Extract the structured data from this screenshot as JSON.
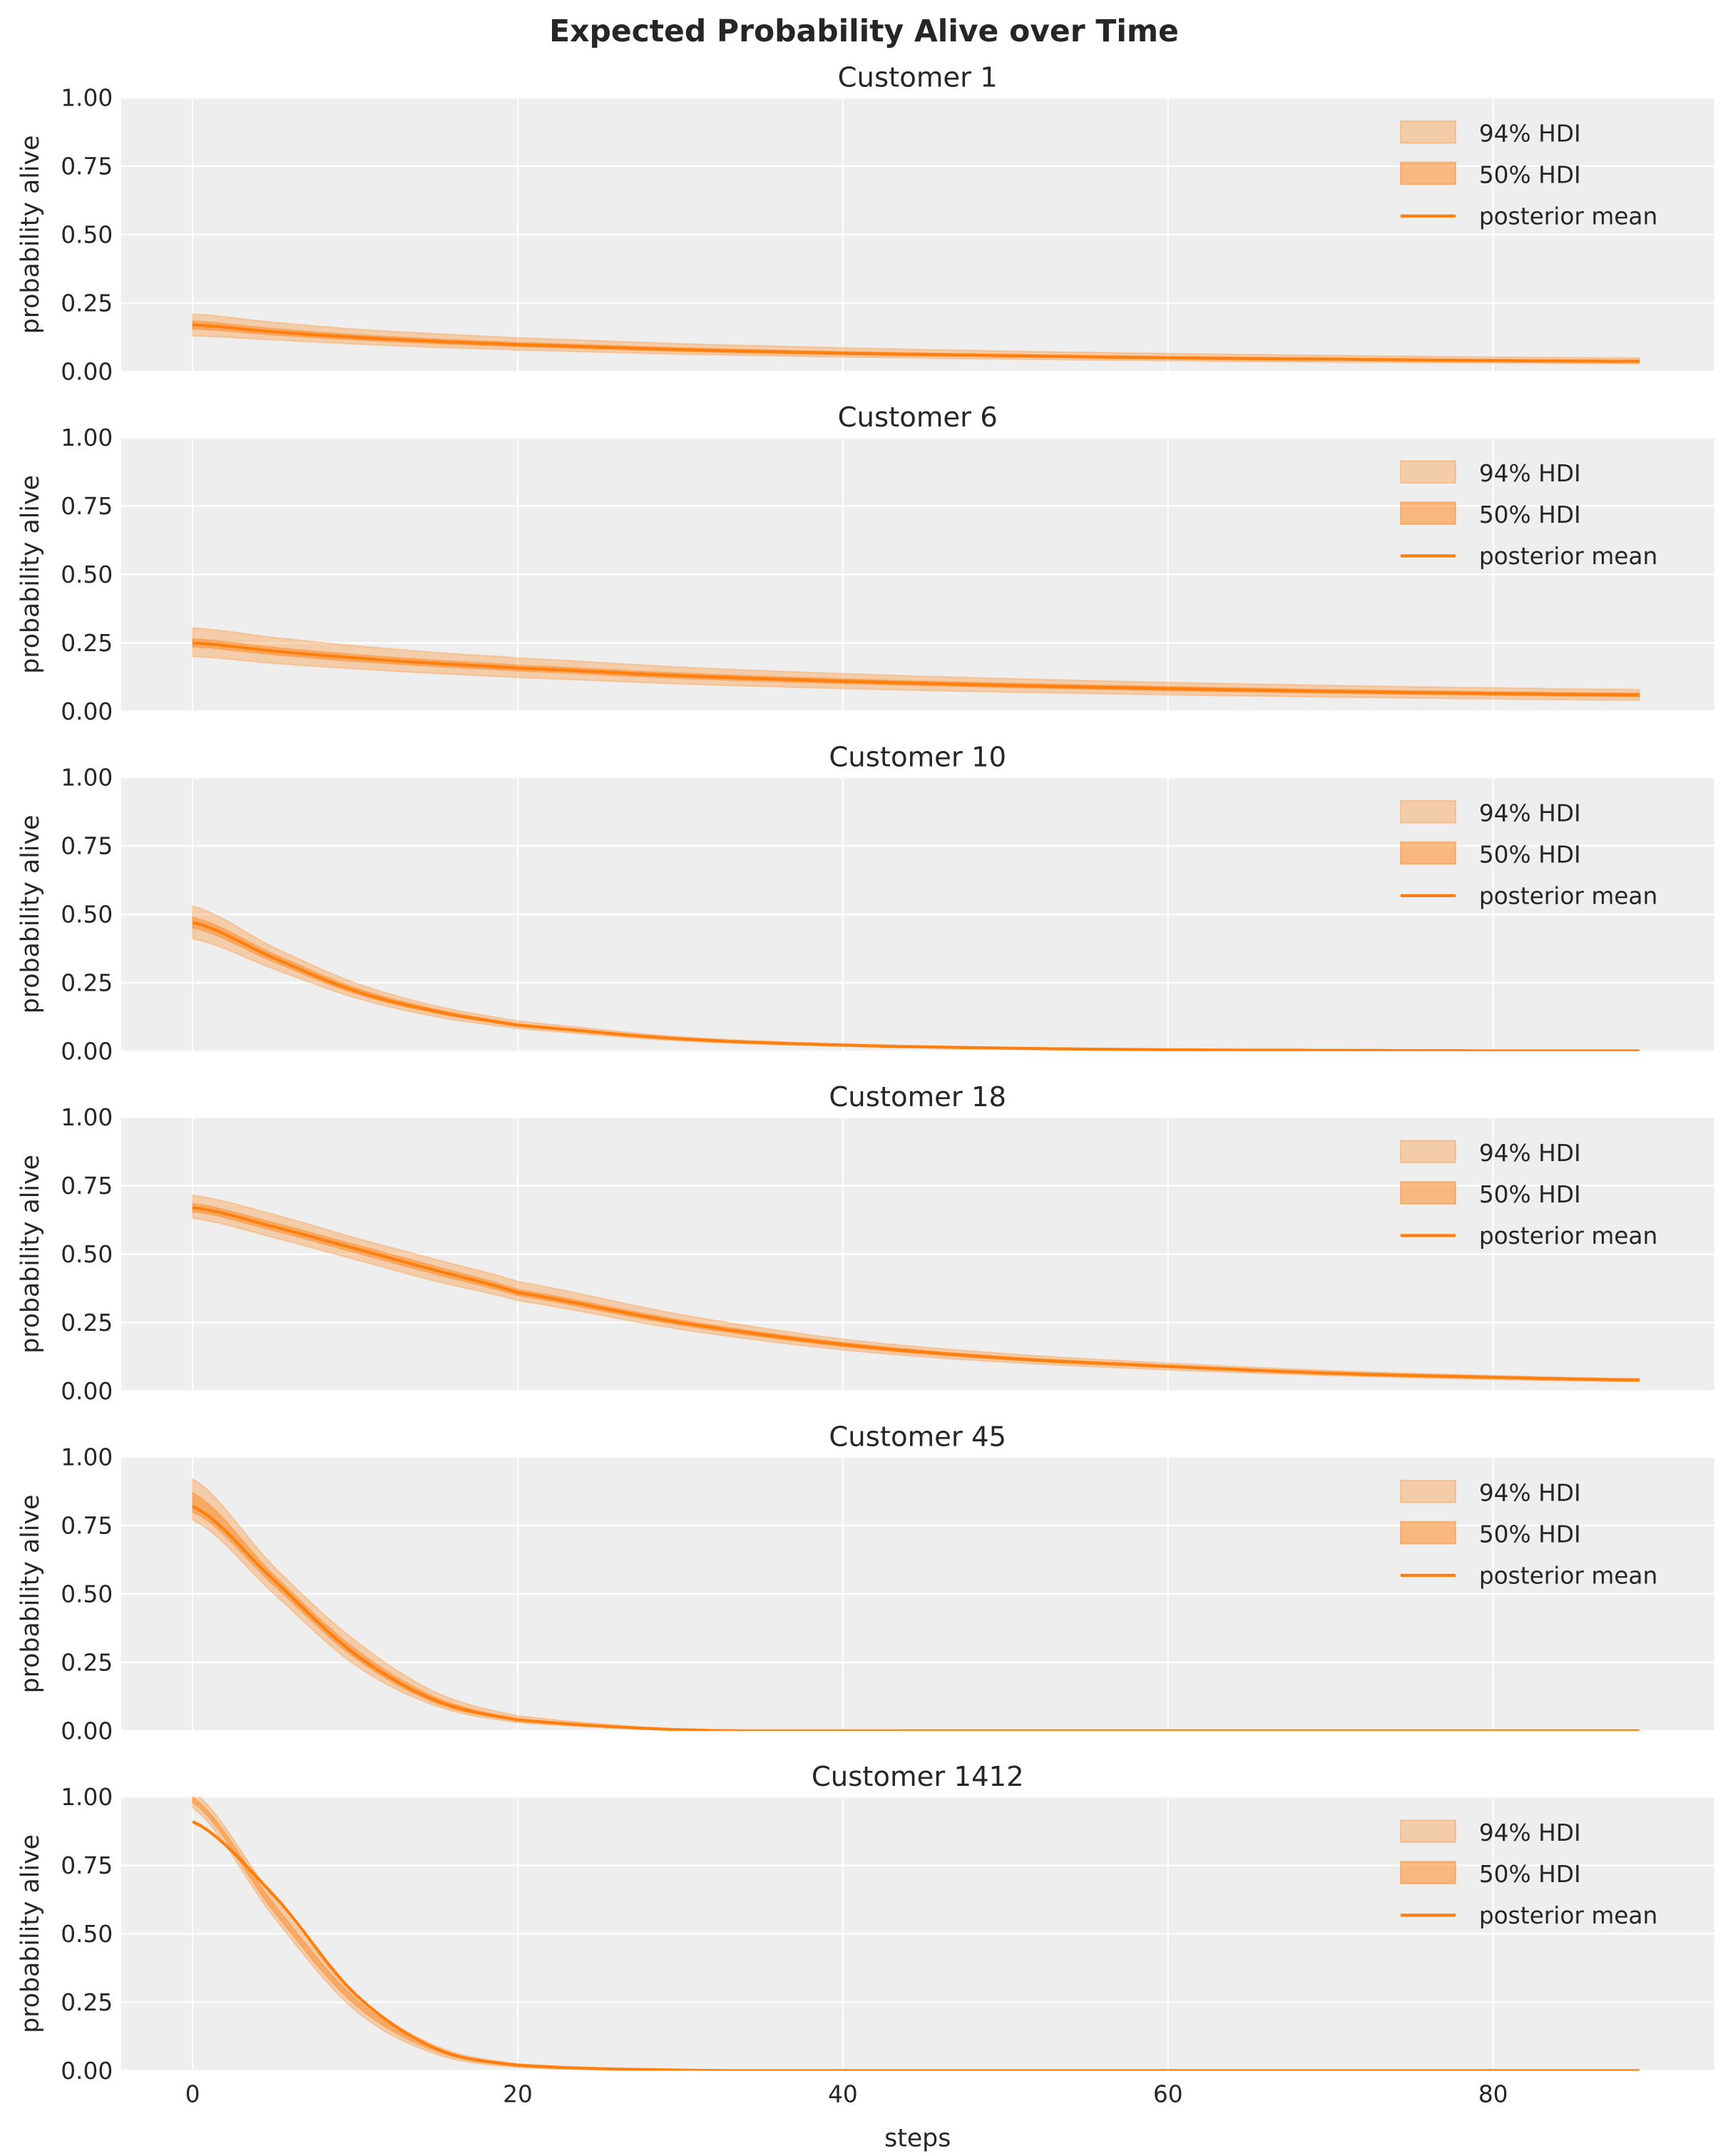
{
  "chart_data": {
    "type": "line",
    "title": "Expected Probability Alive over Time",
    "xlabel": "steps",
    "ylabel": "probability alive",
    "xlim": [
      -4.4,
      93.6
    ],
    "ylim": [
      0,
      1
    ],
    "xticks": [
      "0",
      "20",
      "40",
      "60",
      "80"
    ],
    "yticks": [
      "0.00",
      "0.25",
      "0.50",
      "0.75",
      "1.00"
    ],
    "grid": true,
    "legend_placement": "top-right",
    "legend": [
      "94% HDI",
      "50% HDI",
      "posterior mean"
    ],
    "colors": {
      "series": "#ff7f0e",
      "background": "#eeeeee",
      "grid": "#ffffff"
    },
    "x": [
      0,
      5,
      10,
      15,
      20,
      30,
      40,
      50,
      60,
      70,
      80,
      89
    ],
    "panels": [
      {
        "title": "Customer 1",
        "mean": [
          0.17,
          0.145,
          0.125,
          0.11,
          0.098,
          0.08,
          0.067,
          0.058,
          0.05,
          0.045,
          0.04,
          0.037
        ],
        "hdi94_low": [
          0.13,
          0.115,
          0.1,
          0.088,
          0.078,
          0.063,
          0.053,
          0.045,
          0.039,
          0.034,
          0.031,
          0.028
        ],
        "hdi94_high": [
          0.21,
          0.18,
          0.155,
          0.138,
          0.123,
          0.102,
          0.087,
          0.075,
          0.066,
          0.059,
          0.053,
          0.05
        ],
        "hdi50_low": [
          0.155,
          0.133,
          0.115,
          0.101,
          0.09,
          0.073,
          0.061,
          0.053,
          0.046,
          0.041,
          0.037,
          0.034
        ],
        "hdi50_high": [
          0.185,
          0.157,
          0.135,
          0.119,
          0.106,
          0.087,
          0.073,
          0.063,
          0.055,
          0.049,
          0.044,
          0.041
        ]
      },
      {
        "title": "Customer 6",
        "mean": [
          0.25,
          0.22,
          0.195,
          0.175,
          0.158,
          0.13,
          0.11,
          0.095,
          0.083,
          0.073,
          0.065,
          0.06
        ],
        "hdi94_low": [
          0.2,
          0.175,
          0.155,
          0.138,
          0.123,
          0.1,
          0.083,
          0.07,
          0.06,
          0.052,
          0.045,
          0.04
        ],
        "hdi94_high": [
          0.305,
          0.27,
          0.24,
          0.215,
          0.195,
          0.162,
          0.138,
          0.12,
          0.106,
          0.095,
          0.086,
          0.08
        ],
        "hdi50_low": [
          0.235,
          0.206,
          0.182,
          0.163,
          0.147,
          0.12,
          0.101,
          0.087,
          0.075,
          0.066,
          0.058,
          0.053
        ],
        "hdi50_high": [
          0.265,
          0.234,
          0.208,
          0.187,
          0.169,
          0.14,
          0.119,
          0.103,
          0.091,
          0.08,
          0.072,
          0.067
        ]
      },
      {
        "title": "Customer 10",
        "mean": [
          0.47,
          0.34,
          0.22,
          0.145,
          0.095,
          0.045,
          0.022,
          0.011,
          0.005,
          0.003,
          0.001,
          0.001
        ],
        "hdi94_low": [
          0.41,
          0.3,
          0.195,
          0.125,
          0.082,
          0.037,
          0.018,
          0.008,
          0.004,
          0.002,
          0.001,
          0
        ],
        "hdi94_high": [
          0.53,
          0.38,
          0.25,
          0.165,
          0.11,
          0.053,
          0.027,
          0.014,
          0.007,
          0.004,
          0.002,
          0.001
        ],
        "hdi50_low": [
          0.45,
          0.325,
          0.21,
          0.138,
          0.09,
          0.042,
          0.02,
          0.01,
          0.005,
          0.002,
          0.001,
          0.001
        ],
        "hdi50_high": [
          0.49,
          0.355,
          0.232,
          0.153,
          0.1,
          0.048,
          0.024,
          0.012,
          0.006,
          0.003,
          0.002,
          0.001
        ]
      },
      {
        "title": "Customer 18",
        "mean": [
          0.67,
          0.6,
          0.52,
          0.44,
          0.36,
          0.25,
          0.17,
          0.12,
          0.09,
          0.065,
          0.05,
          0.04
        ],
        "hdi94_low": [
          0.63,
          0.56,
          0.48,
          0.4,
          0.33,
          0.225,
          0.15,
          0.105,
          0.077,
          0.056,
          0.042,
          0.034
        ],
        "hdi94_high": [
          0.715,
          0.645,
          0.56,
          0.48,
          0.4,
          0.28,
          0.19,
          0.137,
          0.102,
          0.075,
          0.057,
          0.046
        ],
        "hdi50_low": [
          0.655,
          0.585,
          0.505,
          0.425,
          0.348,
          0.24,
          0.162,
          0.114,
          0.085,
          0.061,
          0.047,
          0.038
        ],
        "hdi50_high": [
          0.685,
          0.615,
          0.535,
          0.455,
          0.372,
          0.26,
          0.178,
          0.126,
          0.095,
          0.069,
          0.053,
          0.042
        ]
      },
      {
        "title": "Customer 45",
        "mean": [
          0.82,
          0.55,
          0.28,
          0.11,
          0.04,
          0.004,
          0,
          0,
          0,
          0,
          0,
          0
        ],
        "hdi94_low": [
          0.77,
          0.5,
          0.24,
          0.09,
          0.03,
          0.002,
          0,
          0,
          0,
          0,
          0,
          0
        ],
        "hdi94_high": [
          0.92,
          0.6,
          0.33,
          0.14,
          0.055,
          0.007,
          0.001,
          0,
          0,
          0,
          0,
          0
        ],
        "hdi50_low": [
          0.8,
          0.53,
          0.265,
          0.1,
          0.036,
          0.003,
          0,
          0,
          0,
          0,
          0,
          0
        ],
        "hdi50_high": [
          0.87,
          0.57,
          0.3,
          0.122,
          0.045,
          0.005,
          0,
          0,
          0,
          0,
          0,
          0
        ]
      },
      {
        "title": "Customer 1412",
        "mean": [
          0.91,
          0.64,
          0.28,
          0.08,
          0.02,
          0.002,
          0,
          0,
          0,
          0,
          0,
          0
        ],
        "hdi94_low": [
          0.96,
          0.56,
          0.22,
          0.06,
          0.012,
          0.001,
          0,
          0,
          0,
          0,
          0,
          0
        ],
        "hdi94_high": [
          1.02,
          0.63,
          0.28,
          0.09,
          0.025,
          0.003,
          0,
          0,
          0,
          0,
          0,
          0
        ],
        "hdi50_low": [
          0.98,
          0.58,
          0.24,
          0.07,
          0.016,
          0.001,
          0,
          0,
          0,
          0,
          0,
          0
        ],
        "hdi50_high": [
          1.0,
          0.61,
          0.265,
          0.08,
          0.02,
          0.002,
          0,
          0,
          0,
          0,
          0,
          0
        ]
      }
    ]
  }
}
